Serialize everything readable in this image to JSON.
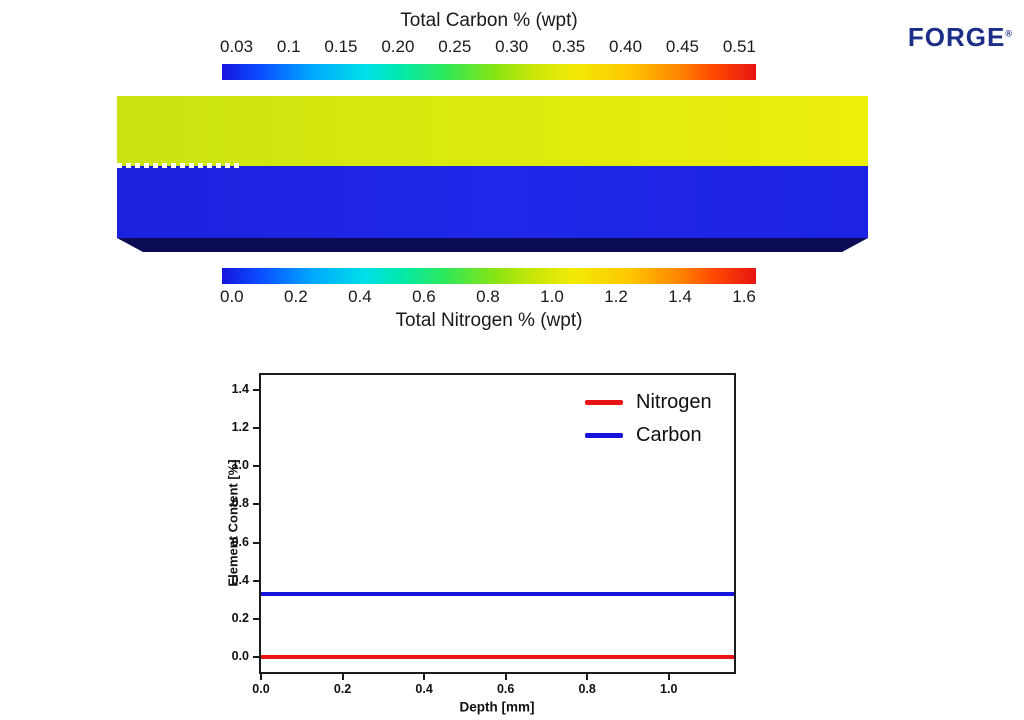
{
  "branding": {
    "logo_text": "FORGE",
    "registered_mark": "®",
    "logo_color": "#1c2e87"
  },
  "carbon_colorbar": {
    "title": "Total Carbon % (wpt)",
    "ticks": [
      "0.03",
      "0.1",
      "0.15",
      "0.20",
      "0.25",
      "0.30",
      "0.35",
      "0.40",
      "0.45",
      "0.51"
    ],
    "range": [
      0.03,
      0.51
    ],
    "colormap": "jet (blue to red)"
  },
  "nitrogen_colorbar": {
    "title": "Total Nitrogen % (wpt)",
    "ticks": [
      "0.0",
      "0.2",
      "0.4",
      "0.6",
      "0.8",
      "1.0",
      "1.2",
      "1.4",
      "1.6"
    ],
    "range": [
      0.0,
      1.6
    ],
    "colormap": "jet (blue to red)"
  },
  "specimen_view": {
    "top_region_color_left": "#c9e411",
    "top_region_color_right": "#ecef0a",
    "bottom_region_color": "#1f27e8",
    "bottom_face_color": "#0b0b55",
    "boundary_marker": "white dotted line",
    "regions": [
      "yellow-green upper band",
      "blue lower band"
    ]
  },
  "chart_data": {
    "type": "line",
    "title": "",
    "xlabel": "Depth [mm]",
    "ylabel": "Element Content [%]",
    "xlim": [
      0.0,
      1.16
    ],
    "ylim": [
      -0.08,
      1.48
    ],
    "x_ticks": [
      0.0,
      0.2,
      0.4,
      0.6,
      0.8,
      1.0
    ],
    "y_ticks": [
      0.0,
      0.2,
      0.4,
      0.6,
      0.8,
      1.0,
      1.2,
      1.4
    ],
    "grid": false,
    "legend_position": "upper right",
    "series": [
      {
        "name": "Nitrogen",
        "color": "#e81414",
        "x": [
          0.0,
          1.16
        ],
        "values": [
          0.0,
          0.0
        ]
      },
      {
        "name": "Carbon",
        "color": "#1414dd",
        "x": [
          0.0,
          1.16
        ],
        "values": [
          0.33,
          0.33
        ]
      }
    ]
  }
}
